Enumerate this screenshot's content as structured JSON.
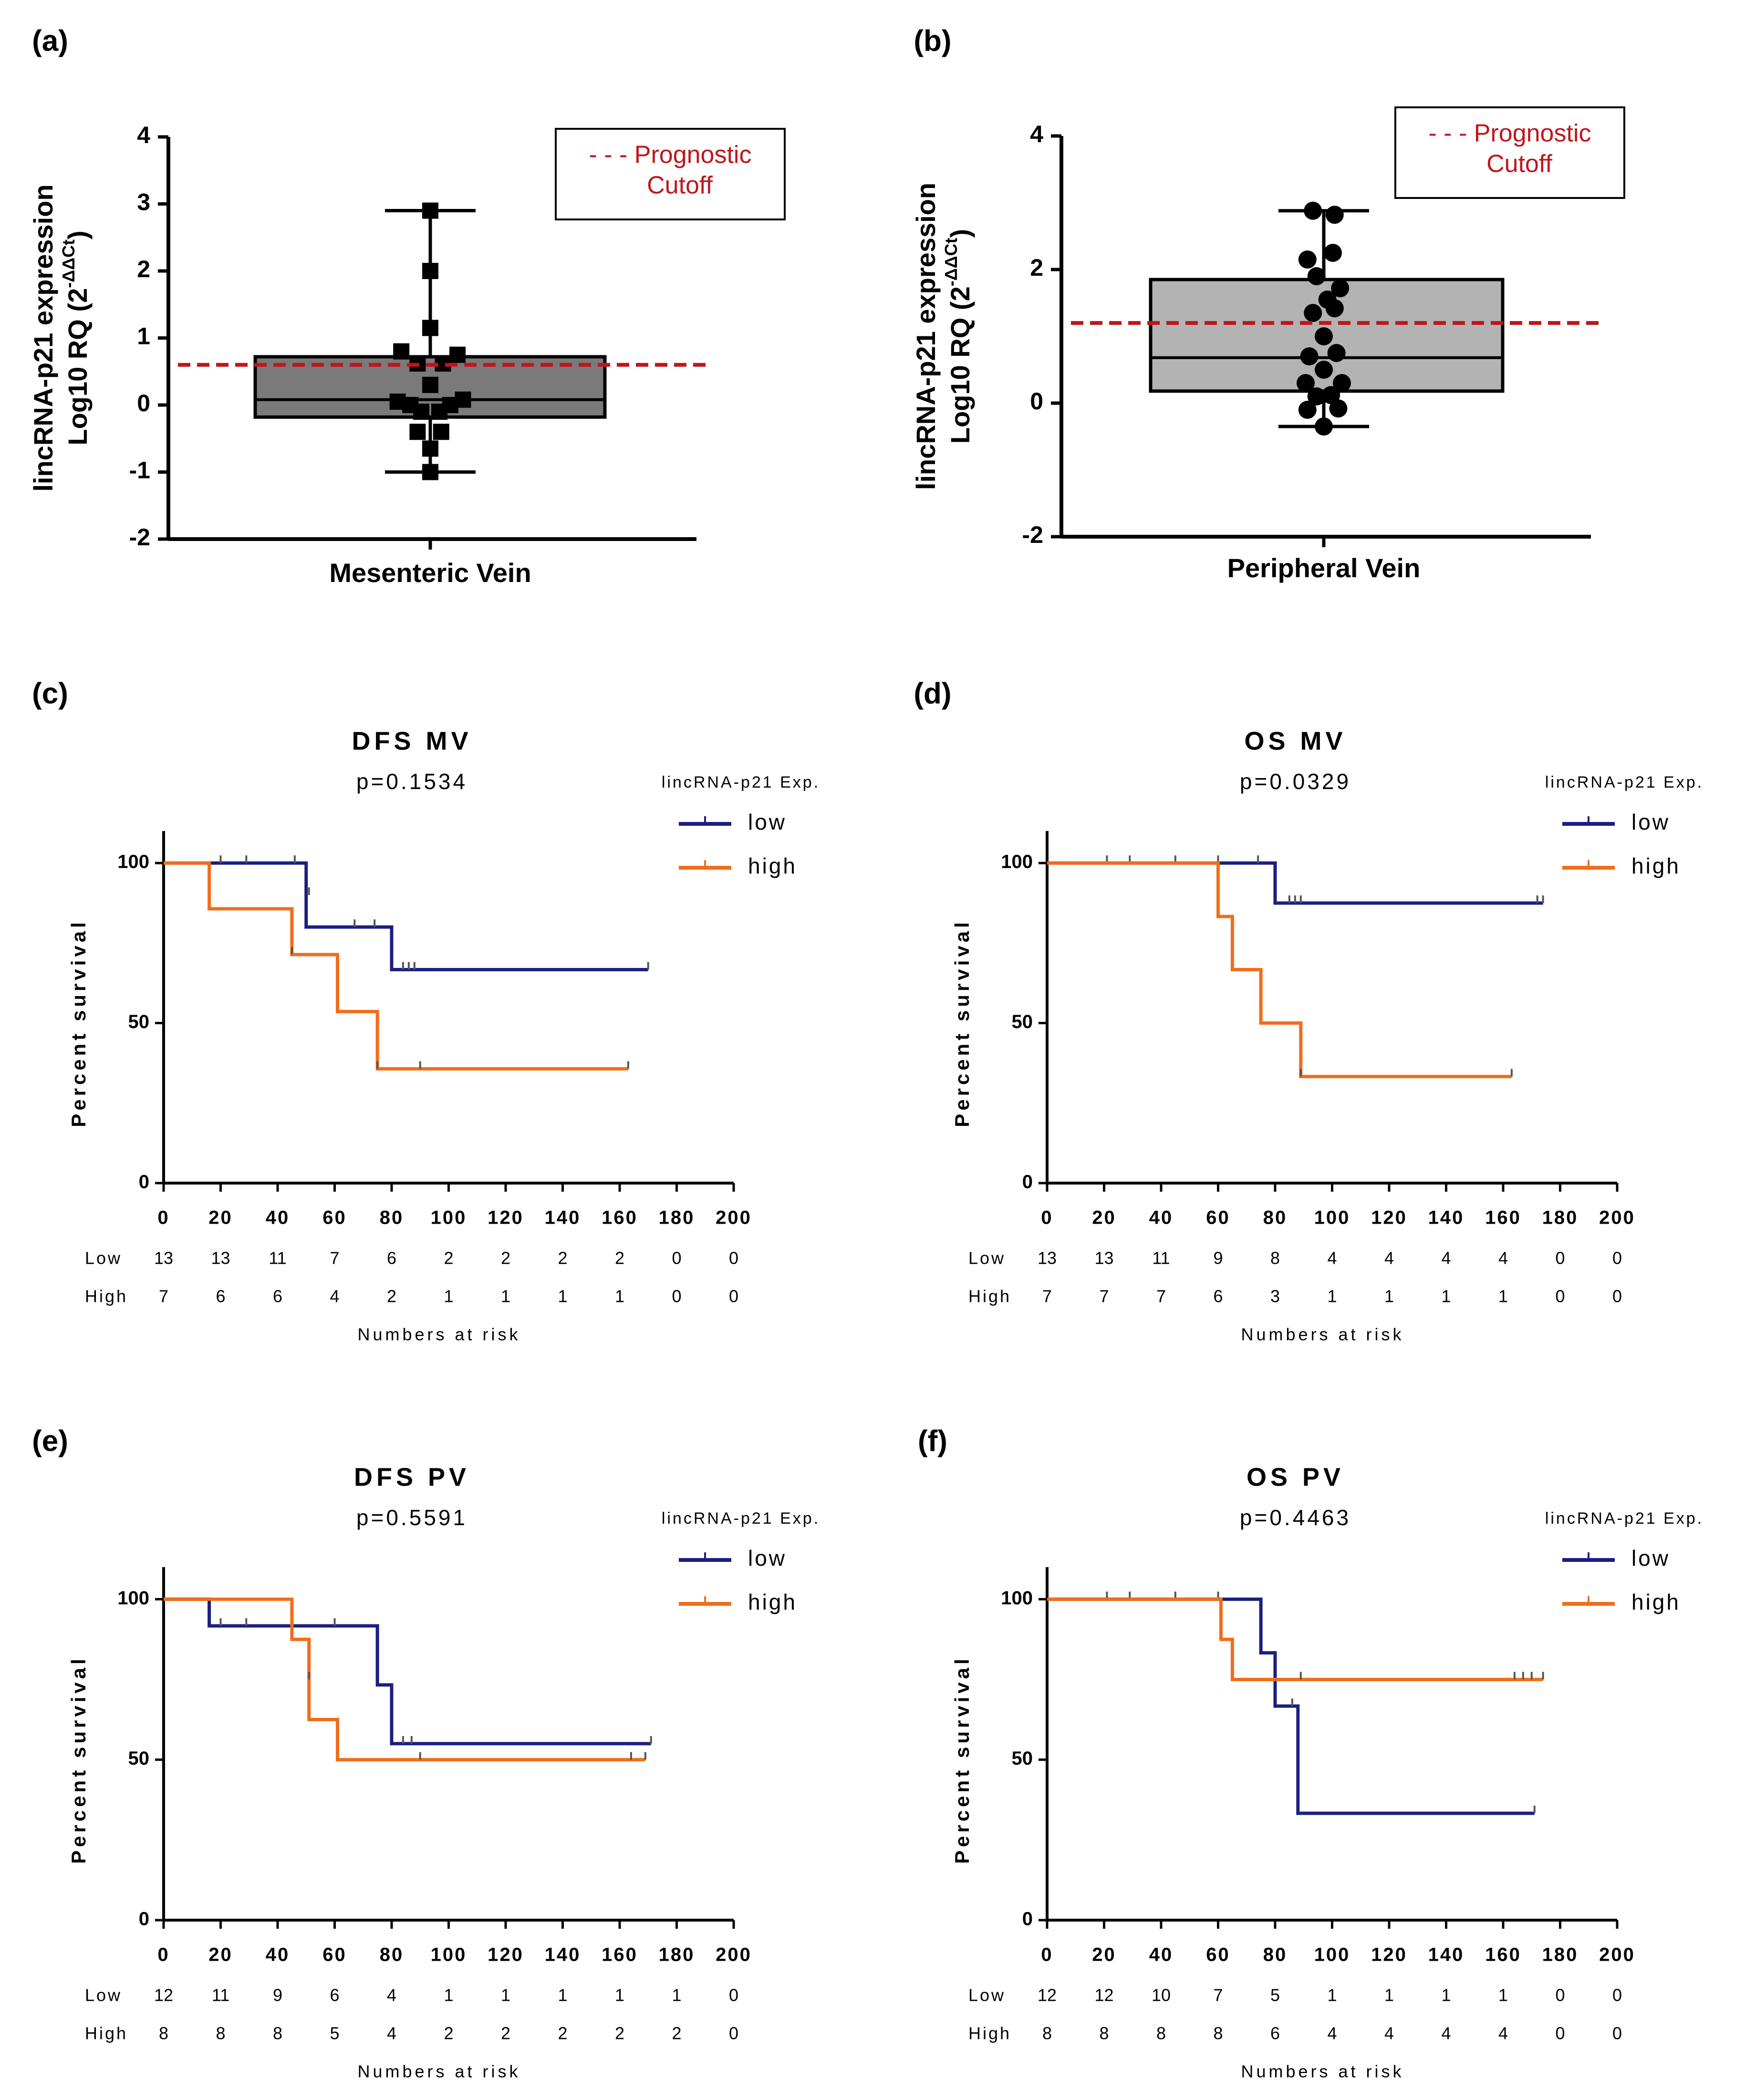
{
  "colors": {
    "low": "#1a1f80",
    "high": "#f26d1a",
    "cutoff": "#c0161b",
    "boxA": "#7a7a7a",
    "boxB": "#b3b3b3",
    "axis": "#000000"
  },
  "chart_data": [
    {
      "panel": "(a)",
      "type": "box",
      "xlabel": "Mesenteric Vein",
      "ylabel_line1": "lincRNA-p21 expression",
      "ylabel_line2": "Log10 RQ (2",
      "ylabel_exp": "-ΔΔCt",
      "ylabel_close": ")",
      "ylim": [
        -2,
        4
      ],
      "yticks": [
        "4",
        "3",
        "2",
        "1",
        "0",
        "-1",
        "-2"
      ],
      "ytick_values": [
        4,
        3,
        2,
        1,
        0,
        -1,
        -2
      ],
      "box": {
        "q1": -0.18,
        "median": 0.08,
        "q3": 0.72,
        "min": -1.0,
        "max": 2.9
      },
      "cutoff": 0.6,
      "marker": "square",
      "legend_line1": "- - - Prognostic",
      "legend_line2": "Cutoff",
      "points": [
        [
          0,
          2.9
        ],
        [
          0,
          2.0
        ],
        [
          0,
          1.15
        ],
        [
          -0.8,
          0.8
        ],
        [
          0.75,
          0.75
        ],
        [
          -0.35,
          0.62
        ],
        [
          0.35,
          0.62
        ],
        [
          0,
          0.3
        ],
        [
          -0.9,
          0.05
        ],
        [
          -0.55,
          0.0
        ],
        [
          0.55,
          0.0
        ],
        [
          0.9,
          0.08
        ],
        [
          -0.25,
          -0.1
        ],
        [
          0.25,
          -0.1
        ],
        [
          -0.35,
          -0.4
        ],
        [
          0.3,
          -0.4
        ],
        [
          0,
          -0.65
        ],
        [
          0,
          -1.0
        ]
      ]
    },
    {
      "panel": "(b)",
      "type": "box",
      "xlabel": "Peripheral Vein",
      "ylabel_line1": "lincRNA-p21 expression",
      "ylabel_line2": "Log10 RQ (2",
      "ylabel_exp": "-ΔΔCt",
      "ylabel_close": ")",
      "ylim": [
        -2,
        4
      ],
      "yticks": [
        "4",
        "2",
        "0",
        "-2"
      ],
      "ytick_values": [
        4,
        2,
        0,
        -2
      ],
      "box": {
        "q1": 0.18,
        "median": 0.68,
        "q3": 1.85,
        "min": -0.35,
        "max": 2.88
      },
      "cutoff": 1.2,
      "marker": "circle",
      "legend_line1": "- - - Prognostic",
      "legend_line2": "Cutoff",
      "points": [
        [
          -0.3,
          2.88
        ],
        [
          0.3,
          2.82
        ],
        [
          -0.45,
          2.15
        ],
        [
          0.25,
          2.25
        ],
        [
          -0.2,
          1.9
        ],
        [
          0.45,
          1.72
        ],
        [
          0.1,
          1.55
        ],
        [
          -0.3,
          1.35
        ],
        [
          0.3,
          1.42
        ],
        [
          0,
          1.0
        ],
        [
          -0.4,
          0.7
        ],
        [
          0.35,
          0.75
        ],
        [
          0,
          0.5
        ],
        [
          -0.5,
          0.3
        ],
        [
          0.5,
          0.3
        ],
        [
          -0.2,
          0.1
        ],
        [
          0.2,
          0.12
        ],
        [
          -0.45,
          -0.1
        ],
        [
          0.4,
          -0.08
        ],
        [
          0,
          -0.35
        ]
      ]
    },
    {
      "panel": "(c)",
      "type": "survival",
      "title": "DFS MV",
      "pvalue": "p=0.1534",
      "legend_title": "lincRNA-p21 Exp.",
      "ylabel": "Percent survival",
      "xlabel": "Numbers at risk",
      "xlim": [
        0,
        200
      ],
      "ylim": [
        0,
        100
      ],
      "xticks": [
        0,
        20,
        40,
        60,
        80,
        100,
        120,
        140,
        160,
        180,
        200
      ],
      "yticks": [
        0,
        50,
        100
      ],
      "series": [
        {
          "name": "low",
          "color_key": "low",
          "steps": [
            [
              0,
              100
            ],
            [
              50,
              80
            ],
            [
              80,
              66.7
            ]
          ],
          "end": 170,
          "censor": [
            [
              20,
              100
            ],
            [
              29,
              100
            ],
            [
              46,
              100
            ],
            [
              51,
              90
            ],
            [
              67,
              80
            ],
            [
              74,
              80
            ],
            [
              84,
              66.7
            ],
            [
              86,
              66.7
            ],
            [
              88,
              66.7
            ],
            [
              170,
              66.7
            ]
          ]
        },
        {
          "name": "high",
          "color_key": "high",
          "steps": [
            [
              0,
              100
            ],
            [
              16,
              85.7
            ],
            [
              45,
              71.4
            ],
            [
              61,
              53.6
            ],
            [
              75,
              35.7
            ]
          ],
          "end": 163,
          "censor": [
            [
              45,
              71.4
            ],
            [
              75,
              35.7
            ],
            [
              90,
              35.7
            ],
            [
              163,
              35.7
            ]
          ]
        }
      ],
      "risk": {
        "Low": [
          "13",
          "13",
          "11",
          "7",
          "6",
          "2",
          "2",
          "2",
          "2",
          "0",
          "0"
        ],
        "High": [
          "7",
          "6",
          "6",
          "4",
          "2",
          "1",
          "1",
          "1",
          "1",
          "0",
          "0"
        ]
      }
    },
    {
      "panel": "(d)",
      "type": "survival",
      "title": "OS MV",
      "pvalue": "p=0.0329",
      "legend_title": "lincRNA-p21 Exp.",
      "ylabel": "Percent survival",
      "xlabel": "Numbers at risk",
      "xlim": [
        0,
        200
      ],
      "ylim": [
        0,
        100
      ],
      "xticks": [
        0,
        20,
        40,
        60,
        80,
        100,
        120,
        140,
        160,
        180,
        200
      ],
      "yticks": [
        0,
        50,
        100
      ],
      "series": [
        {
          "name": "low",
          "color_key": "low",
          "steps": [
            [
              0,
              100
            ],
            [
              80,
              87.5
            ]
          ],
          "end": 174,
          "censor": [
            [
              21,
              100
            ],
            [
              29,
              100
            ],
            [
              45,
              100
            ],
            [
              60,
              100
            ],
            [
              74,
              100
            ],
            [
              85,
              87.5
            ],
            [
              87,
              87.5
            ],
            [
              89,
              87.5
            ],
            [
              172,
              87.5
            ],
            [
              174,
              87.5
            ]
          ]
        },
        {
          "name": "high",
          "color_key": "high",
          "steps": [
            [
              0,
              100
            ],
            [
              60,
              83.3
            ],
            [
              65,
              66.7
            ],
            [
              75,
              50
            ],
            [
              89,
              33.3
            ]
          ],
          "end": 163,
          "censor": [
            [
              89,
              33.3
            ],
            [
              163,
              33.3
            ]
          ]
        }
      ],
      "risk": {
        "Low": [
          "13",
          "13",
          "11",
          "9",
          "8",
          "4",
          "4",
          "4",
          "4",
          "0",
          "0"
        ],
        "High": [
          "7",
          "7",
          "7",
          "6",
          "3",
          "1",
          "1",
          "1",
          "1",
          "0",
          "0"
        ]
      }
    },
    {
      "panel": "(e)",
      "type": "survival",
      "title": "DFS PV",
      "pvalue": "p=0.5591",
      "legend_title": "lincRNA-p21 Exp.",
      "ylabel": "Percent survival",
      "xlabel": "Numbers at risk",
      "xlim": [
        0,
        200
      ],
      "ylim": [
        0,
        100
      ],
      "xticks": [
        0,
        20,
        40,
        60,
        80,
        100,
        120,
        140,
        160,
        180,
        200
      ],
      "yticks": [
        0,
        50,
        100
      ],
      "series": [
        {
          "name": "low",
          "color_key": "low",
          "steps": [
            [
              0,
              100
            ],
            [
              16,
              91.7
            ],
            [
              75,
              73.3
            ],
            [
              80,
              55
            ]
          ],
          "end": 171,
          "censor": [
            [
              20,
              91.7
            ],
            [
              29,
              91.7
            ],
            [
              45,
              91.7
            ],
            [
              60,
              91.7
            ],
            [
              84,
              55
            ],
            [
              87,
              55
            ],
            [
              171,
              55
            ]
          ]
        },
        {
          "name": "high",
          "color_key": "high",
          "steps": [
            [
              0,
              100
            ],
            [
              45,
              87.5
            ],
            [
              51,
              62.5
            ],
            [
              61,
              50
            ]
          ],
          "end": 169,
          "censor": [
            [
              51,
              75
            ],
            [
              90,
              50
            ],
            [
              164,
              50
            ],
            [
              169,
              50
            ]
          ]
        }
      ],
      "risk": {
        "Low": [
          "12",
          "11",
          "9",
          "6",
          "4",
          "1",
          "1",
          "1",
          "1",
          "1",
          "0"
        ],
        "High": [
          "8",
          "8",
          "8",
          "5",
          "4",
          "2",
          "2",
          "2",
          "2",
          "2",
          "0"
        ]
      }
    },
    {
      "panel": "(f)",
      "type": "survival",
      "title": "OS PV",
      "pvalue": "p=0.4463",
      "legend_title": "lincRNA-p21 Exp.",
      "ylabel": "Percent survival",
      "xlabel": "Numbers at risk",
      "xlim": [
        0,
        200
      ],
      "ylim": [
        0,
        100
      ],
      "xticks": [
        0,
        20,
        40,
        60,
        80,
        100,
        120,
        140,
        160,
        180,
        200
      ],
      "yticks": [
        0,
        50,
        100
      ],
      "series": [
        {
          "name": "low",
          "color_key": "low",
          "steps": [
            [
              0,
              100
            ],
            [
              75,
              83.3
            ],
            [
              80,
              66.7
            ],
            [
              88,
              33.3
            ]
          ],
          "end": 171,
          "censor": [
            [
              21,
              100
            ],
            [
              29,
              100
            ],
            [
              45,
              100
            ],
            [
              60,
              100
            ],
            [
              86,
              66.7
            ],
            [
              171,
              33.3
            ]
          ]
        },
        {
          "name": "high",
          "color_key": "high",
          "steps": [
            [
              0,
              100
            ],
            [
              61,
              87.5
            ],
            [
              65,
              75
            ]
          ],
          "end": 174,
          "censor": [
            [
              89,
              75
            ],
            [
              164,
              75
            ],
            [
              167,
              75
            ],
            [
              170,
              75
            ],
            [
              174,
              75
            ]
          ]
        }
      ],
      "risk": {
        "Low": [
          "12",
          "12",
          "10",
          "7",
          "5",
          "1",
          "1",
          "1",
          "1",
          "0",
          "0"
        ],
        "High": [
          "8",
          "8",
          "8",
          "8",
          "6",
          "4",
          "4",
          "4",
          "4",
          "0",
          "0"
        ]
      }
    }
  ]
}
